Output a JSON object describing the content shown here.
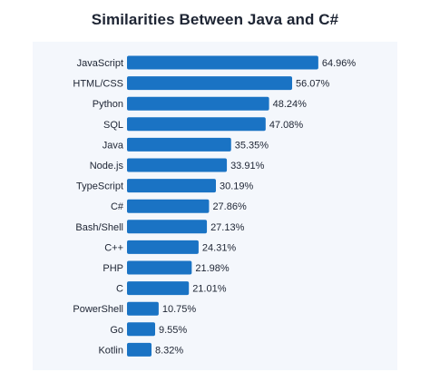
{
  "chart_data": {
    "type": "bar",
    "orientation": "horizontal",
    "title": "Similarities Between Java and C#",
    "xlabel": "",
    "ylabel": "",
    "categories": [
      "JavaScript",
      "HTML/CSS",
      "Python",
      "SQL",
      "Java",
      "Node.js",
      "TypeScript",
      "C#",
      "Bash/Shell",
      "C++",
      "PHP",
      "C",
      "PowerShell",
      "Go",
      "Kotlin"
    ],
    "values": [
      64.96,
      56.07,
      48.24,
      47.08,
      35.35,
      33.91,
      30.19,
      27.86,
      27.13,
      24.31,
      21.98,
      21.01,
      10.75,
      9.55,
      8.32
    ],
    "value_labels": [
      "64.96%",
      "56.07%",
      "48.24%",
      "47.08%",
      "35.35%",
      "33.91%",
      "30.19%",
      "27.86%",
      "27.13%",
      "24.31%",
      "21.98%",
      "21.01%",
      "10.75%",
      "9.55%",
      "8.32%"
    ],
    "xlim": [
      0,
      65
    ],
    "grid": false,
    "legend": "none",
    "bar_color": "#1a73c4",
    "panel_color": "#f4f7fc"
  }
}
